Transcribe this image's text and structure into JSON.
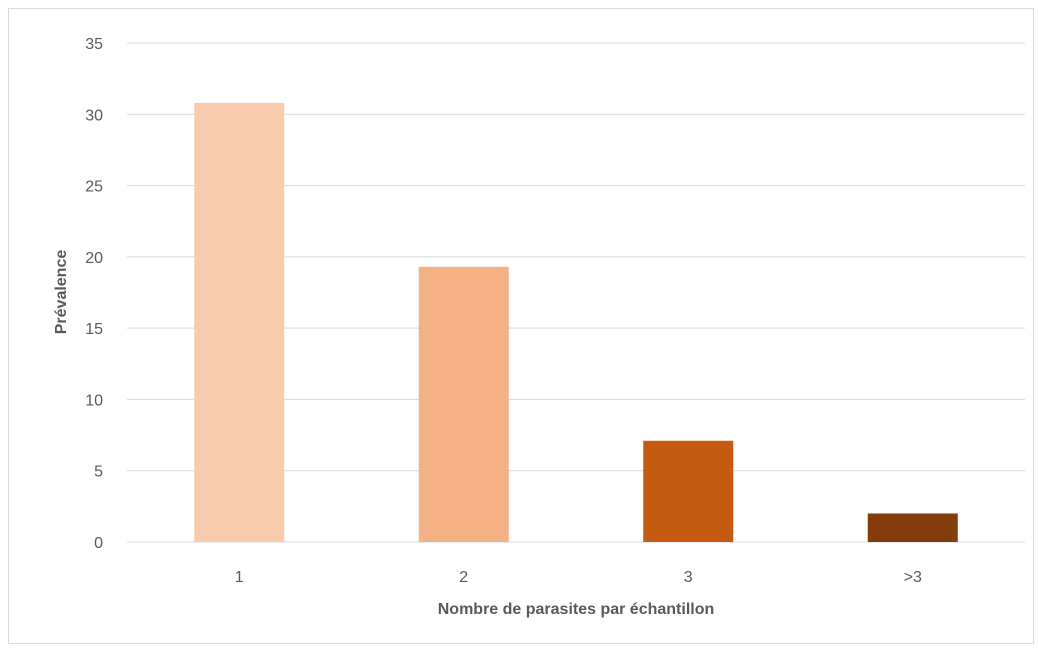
{
  "chart_data": {
    "type": "bar",
    "title": "",
    "xlabel": "Nombre de parasites par échantillon",
    "ylabel": "Prévalence",
    "categories": [
      "1",
      "2",
      "3",
      ">3"
    ],
    "values": [
      30.8,
      19.3,
      7.1,
      2.0
    ],
    "bar_colors": [
      "#F8CBAD",
      "#F4B183",
      "#C55A11",
      "#843C0C"
    ],
    "ylim": [
      0,
      35
    ],
    "yticks": [
      0,
      5,
      10,
      15,
      20,
      25,
      30,
      35
    ],
    "grid": true,
    "gridline_color": "#d9d9d9",
    "legend": "none"
  }
}
